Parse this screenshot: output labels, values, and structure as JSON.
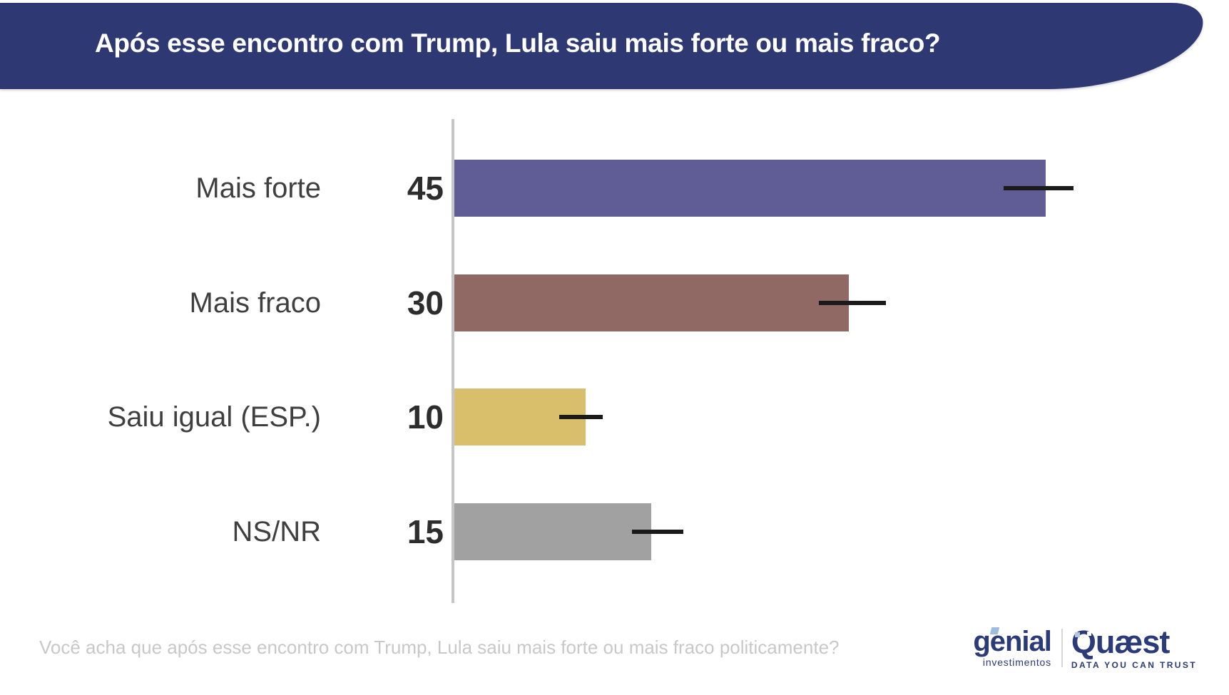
{
  "header": {
    "title": "Após esse encontro com Trump, Lula saiu mais forte ou mais fraco?",
    "background_color": "#2E3773",
    "title_color": "#FFFFFF"
  },
  "chart_data": {
    "type": "bar",
    "orientation": "horizontal",
    "title": "Após esse encontro com Trump, Lula saiu mais forte ou mais fraco?",
    "categories": [
      "Mais forte",
      "Mais fraco",
      "Saiu igual (ESP.)",
      "NS/NR"
    ],
    "values": [
      45,
      30,
      10,
      15
    ],
    "bar_colors": [
      "#605D96",
      "#916964",
      "#D9BE6C",
      "#A2A1A1"
    ],
    "error_bars": [
      [
        41.8,
        47.1
      ],
      [
        27.7,
        32.8
      ],
      [
        8.0,
        11.3
      ],
      [
        13.5,
        17.4
      ]
    ],
    "xlim": [
      0,
      59
    ],
    "grid": false,
    "legend": false,
    "value_label_color": "#2D2D2D",
    "category_label_color": "#3F3F3F",
    "axis_line_color": "#C5C5C5",
    "error_bar_color": "#1A1A1A"
  },
  "footer": {
    "question": "Você acha que após esse encontro com Trump, Lula saiu mais forte ou mais fraco politicamente?",
    "question_color": "#C8C8C8"
  },
  "branding": {
    "genial": {
      "name": "genial",
      "subtitle": "investimentos",
      "color": "#2B3A78",
      "accent_color": "#9FBCDC"
    },
    "quaest": {
      "name": "Quæst",
      "tagline": "DATA YOU CAN TRUST",
      "color": "#2B3A78"
    }
  }
}
